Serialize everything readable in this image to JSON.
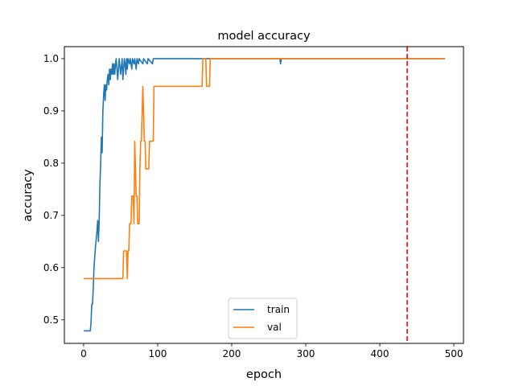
{
  "chart_data": {
    "type": "line",
    "title": "model accuracy",
    "xlabel": "epoch",
    "ylabel": "accuracy",
    "xlim": [
      -26,
      513
    ],
    "ylim": [
      0.455,
      1.023
    ],
    "xticks": [
      0,
      100,
      200,
      300,
      400,
      500
    ],
    "yticks": [
      0.5,
      0.6,
      0.7,
      0.8,
      0.9,
      1.0
    ],
    "ytick_labels": [
      "0.5",
      "0.6",
      "0.7",
      "0.8",
      "0.9",
      "1.0"
    ],
    "legend_position": "lower center",
    "vline": {
      "x": 437,
      "color": "#ff0000",
      "style": "dashed"
    },
    "series": [
      {
        "name": "train",
        "color": "#1f77b4",
        "points": [
          [
            0,
            0.479
          ],
          [
            9,
            0.479
          ],
          [
            10,
            0.495
          ],
          [
            11,
            0.53
          ],
          [
            12,
            0.53
          ],
          [
            13,
            0.56
          ],
          [
            14,
            0.6
          ],
          [
            16,
            0.64
          ],
          [
            18,
            0.67
          ],
          [
            19,
            0.69
          ],
          [
            20,
            0.65
          ],
          [
            21,
            0.69
          ],
          [
            22,
            0.76
          ],
          [
            23,
            0.8
          ],
          [
            24,
            0.85
          ],
          [
            25,
            0.82
          ],
          [
            26,
            0.9
          ],
          [
            27,
            0.93
          ],
          [
            28,
            0.95
          ],
          [
            29,
            0.92
          ],
          [
            30,
            0.95
          ],
          [
            31,
            0.94
          ],
          [
            32,
            0.96
          ],
          [
            33,
            0.97
          ],
          [
            34,
            0.95
          ],
          [
            35,
            0.98
          ],
          [
            36,
            0.96
          ],
          [
            37,
            0.98
          ],
          [
            38,
            0.97
          ],
          [
            39,
            0.99
          ],
          [
            40,
            0.97
          ],
          [
            41,
            0.99
          ],
          [
            42,
            0.97
          ],
          [
            43,
            0.99
          ],
          [
            44,
            1.0
          ],
          [
            45,
            0.98
          ],
          [
            46,
            0.96
          ],
          [
            47,
            0.98
          ],
          [
            48,
            1.0
          ],
          [
            50,
            0.97
          ],
          [
            52,
            1.0
          ],
          [
            53,
            0.96
          ],
          [
            54,
            0.98
          ],
          [
            55,
            1.0
          ],
          [
            56,
            0.99
          ],
          [
            57,
            0.97
          ],
          [
            58,
            1.0
          ],
          [
            59,
            0.98
          ],
          [
            60,
            1.0
          ],
          [
            62,
            0.99
          ],
          [
            63,
            1.0
          ],
          [
            65,
            0.98
          ],
          [
            66,
            1.0
          ],
          [
            68,
            0.99
          ],
          [
            69,
            1.0
          ],
          [
            71,
            0.98
          ],
          [
            72,
            1.0
          ],
          [
            74,
            0.99
          ],
          [
            75,
            1.0
          ],
          [
            80,
            0.99
          ],
          [
            81,
            1.0
          ],
          [
            86,
            0.99
          ],
          [
            87,
            1.0
          ],
          [
            93,
            0.99
          ],
          [
            94,
            1.0
          ],
          [
            265,
            1.0
          ],
          [
            266,
            0.99
          ],
          [
            267,
            1.0
          ],
          [
            488,
            1.0
          ]
        ]
      },
      {
        "name": "val",
        "color": "#ff7f0e",
        "points": [
          [
            0,
            0.579
          ],
          [
            53,
            0.579
          ],
          [
            54,
            0.632
          ],
          [
            58,
            0.632
          ],
          [
            59,
            0.579
          ],
          [
            60,
            0.632
          ],
          [
            61,
            0.632
          ],
          [
            62,
            0.684
          ],
          [
            64,
            0.684
          ],
          [
            65,
            0.737
          ],
          [
            67,
            0.737
          ],
          [
            68,
            0.684
          ],
          [
            69,
            0.842
          ],
          [
            70,
            0.789
          ],
          [
            71,
            0.737
          ],
          [
            72,
            0.737
          ],
          [
            73,
            0.684
          ],
          [
            75,
            0.684
          ],
          [
            76,
            0.789
          ],
          [
            77,
            0.842
          ],
          [
            78,
            0.842
          ],
          [
            79,
            0.895
          ],
          [
            80,
            0.947
          ],
          [
            81,
            0.895
          ],
          [
            82,
            0.842
          ],
          [
            83,
            0.842
          ],
          [
            84,
            0.789
          ],
          [
            88,
            0.789
          ],
          [
            89,
            0.842
          ],
          [
            94,
            0.842
          ],
          [
            95,
            0.947
          ],
          [
            160,
            0.947
          ],
          [
            161,
            1.0
          ],
          [
            165,
            1.0
          ],
          [
            166,
            0.947
          ],
          [
            170,
            0.947
          ],
          [
            171,
            1.0
          ],
          [
            488,
            1.0
          ]
        ]
      }
    ]
  }
}
